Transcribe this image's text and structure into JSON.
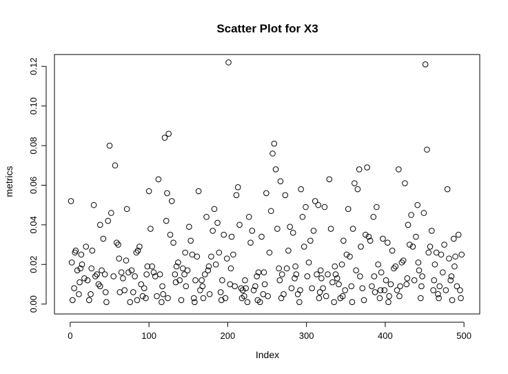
{
  "chart_data": {
    "type": "scatter",
    "title": "Scatter Plot for X3",
    "xlabel": "Index",
    "ylabel": "metrics",
    "xlim": [
      -20,
      520
    ],
    "ylim": [
      -0.005,
      0.126
    ],
    "x_ticks": [
      0,
      100,
      200,
      300,
      400,
      500
    ],
    "x_tick_labels": [
      "0",
      "100",
      "200",
      "300",
      "400",
      "500"
    ],
    "y_ticks": [
      0.0,
      0.02,
      0.04,
      0.06,
      0.08,
      0.1,
      0.12
    ],
    "y_tick_labels": [
      "0.00",
      "0.02",
      "0.04",
      "0.06",
      "0.08",
      "0.10",
      "0.12"
    ],
    "marker": "open-circle",
    "grid": false,
    "legend": "none",
    "point_color": "#000000",
    "points": [
      [
        1,
        0.052
      ],
      [
        2,
        0.021
      ],
      [
        3,
        0.002
      ],
      [
        5,
        0.008
      ],
      [
        6,
        0.026
      ],
      [
        7,
        0.027
      ],
      [
        9,
        0.017
      ],
      [
        11,
        0.005
      ],
      [
        13,
        0.018
      ],
      [
        14,
        0.025
      ],
      [
        15,
        0.02
      ],
      [
        18,
        0.013
      ],
      [
        20,
        0.029
      ],
      [
        22,
        0.012
      ],
      [
        24,
        0.002
      ],
      [
        26,
        0.005
      ],
      [
        28,
        0.027
      ],
      [
        30,
        0.05
      ],
      [
        32,
        0.014
      ],
      [
        34,
        0.015
      ],
      [
        36,
        0.01
      ],
      [
        38,
        0.04
      ],
      [
        40,
        0.017
      ],
      [
        42,
        0.033
      ],
      [
        44,
        0.015
      ],
      [
        46,
        0.001
      ],
      [
        48,
        0.042
      ],
      [
        50,
        0.08
      ],
      [
        52,
        0.046
      ],
      [
        55,
        0.014
      ],
      [
        57,
        0.07
      ],
      [
        59,
        0.031
      ],
      [
        61,
        0.03
      ],
      [
        63,
        0.006
      ],
      [
        65,
        0.016
      ],
      [
        67,
        0.013
      ],
      [
        69,
        0.007
      ],
      [
        72,
        0.048
      ],
      [
        74,
        0.016
      ],
      [
        76,
        0.001
      ],
      [
        78,
        0.017
      ],
      [
        80,
        0.006
      ],
      [
        82,
        0.014
      ],
      [
        84,
        0.026
      ],
      [
        86,
        0.027
      ],
      [
        88,
        0.029
      ],
      [
        90,
        0.01
      ],
      [
        92,
        0.004
      ],
      [
        94,
        0.008
      ],
      [
        96,
        0.003
      ],
      [
        98,
        0.019
      ],
      [
        100,
        0.057
      ],
      [
        102,
        0.038
      ],
      [
        104,
        0.019
      ],
      [
        106,
        0.016
      ],
      [
        108,
        0.014
      ],
      [
        110,
        0.004
      ],
      [
        112,
        0.063
      ],
      [
        114,
        0.015
      ],
      [
        116,
        0.001
      ],
      [
        118,
        0.005
      ],
      [
        120,
        0.084
      ],
      [
        122,
        0.042
      ],
      [
        123,
        0.056
      ],
      [
        124,
        0.003
      ],
      [
        125,
        0.086
      ],
      [
        127,
        0.035
      ],
      [
        129,
        0.052
      ],
      [
        131,
        0.031
      ],
      [
        133,
        0.015
      ],
      [
        135,
        0.019
      ],
      [
        137,
        0.021
      ],
      [
        139,
        0.012
      ],
      [
        141,
        0.002
      ],
      [
        143,
        0.018
      ],
      [
        145,
        0.015
      ],
      [
        147,
        0.009
      ],
      [
        149,
        0.017
      ],
      [
        151,
        0.039
      ],
      [
        153,
        0.032
      ],
      [
        155,
        0.025
      ],
      [
        157,
        0.003
      ],
      [
        159,
        0.012
      ],
      [
        161,
        0.024
      ],
      [
        163,
        0.057
      ],
      [
        165,
        0.007
      ],
      [
        167,
        0.012
      ],
      [
        169,
        0.003
      ],
      [
        171,
        0.015
      ],
      [
        173,
        0.044
      ],
      [
        175,
        0.017
      ],
      [
        177,
        0.005
      ],
      [
        179,
        0.024
      ],
      [
        181,
        0.037
      ],
      [
        183,
        0.048
      ],
      [
        185,
        0.02
      ],
      [
        187,
        0.041
      ],
      [
        189,
        0.026
      ],
      [
        191,
        0.006
      ],
      [
        193,
        0.012
      ],
      [
        195,
        0.035
      ],
      [
        197,
        0.003
      ],
      [
        199,
        0.023
      ],
      [
        201,
        0.122
      ],
      [
        203,
        0.01
      ],
      [
        205,
        0.034
      ],
      [
        207,
        0.025
      ],
      [
        209,
        0.009
      ],
      [
        211,
        0.055
      ],
      [
        213,
        0.059
      ],
      [
        215,
        0.04
      ],
      [
        217,
        0.008
      ],
      [
        219,
        0.007
      ],
      [
        221,
        0.004
      ],
      [
        223,
        0.008
      ],
      [
        225,
        0.001
      ],
      [
        227,
        0.044
      ],
      [
        229,
        0.031
      ],
      [
        231,
        0.037
      ],
      [
        233,
        0.007
      ],
      [
        235,
        0.009
      ],
      [
        237,
        0.014
      ],
      [
        239,
        0.016
      ],
      [
        241,
        0.001
      ],
      [
        243,
        0.034
      ],
      [
        245,
        0.005
      ],
      [
        247,
        0.01
      ],
      [
        249,
        0.056
      ],
      [
        251,
        0.004
      ],
      [
        253,
        0.026
      ],
      [
        255,
        0.047
      ],
      [
        257,
        0.076
      ],
      [
        259,
        0.081
      ],
      [
        261,
        0.068
      ],
      [
        263,
        0.038
      ],
      [
        265,
        0.018
      ],
      [
        267,
        0.062
      ],
      [
        269,
        0.015
      ],
      [
        271,
        0.005
      ],
      [
        273,
        0.055
      ],
      [
        275,
        0.018
      ],
      [
        277,
        0.027
      ],
      [
        279,
        0.039
      ],
      [
        281,
        0.008
      ],
      [
        283,
        0.036
      ],
      [
        285,
        0.013
      ],
      [
        287,
        0.015
      ],
      [
        289,
        0.005
      ],
      [
        291,
        0.001
      ],
      [
        293,
        0.058
      ],
      [
        295,
        0.044
      ],
      [
        297,
        0.029
      ],
      [
        299,
        0.049
      ],
      [
        301,
        0.014
      ],
      [
        303,
        0.021
      ],
      [
        305,
        0.032
      ],
      [
        307,
        0.008
      ],
      [
        309,
        0.037
      ],
      [
        311,
        0.052
      ],
      [
        313,
        0.015
      ],
      [
        315,
        0.05
      ],
      [
        317,
        0.006
      ],
      [
        319,
        0.013
      ],
      [
        321,
        0.008
      ],
      [
        323,
        0.049
      ],
      [
        325,
        0.004
      ],
      [
        327,
        0.015
      ],
      [
        329,
        0.063
      ],
      [
        331,
        0.038
      ],
      [
        333,
        0.011
      ],
      [
        335,
        0.001
      ],
      [
        337,
        0.015
      ],
      [
        339,
        0.013
      ],
      [
        341,
        0.01
      ],
      [
        343,
        0.003
      ],
      [
        345,
        0.02
      ],
      [
        347,
        0.032
      ],
      [
        349,
        0.007
      ],
      [
        351,
        0.025
      ],
      [
        353,
        0.048
      ],
      [
        355,
        0.024
      ],
      [
        357,
        0.009
      ],
      [
        359,
        0.038
      ],
      [
        361,
        0.061
      ],
      [
        363,
        0.017
      ],
      [
        365,
        0.058
      ],
      [
        367,
        0.068
      ],
      [
        369,
        0.029
      ],
      [
        371,
        0.008
      ],
      [
        373,
        0.002
      ],
      [
        375,
        0.035
      ],
      [
        377,
        0.069
      ],
      [
        379,
        0.034
      ],
      [
        381,
        0.032
      ],
      [
        383,
        0.009
      ],
      [
        385,
        0.044
      ],
      [
        387,
        0.006
      ],
      [
        389,
        0.049
      ],
      [
        391,
        0.02
      ],
      [
        393,
        0.003
      ],
      [
        395,
        0.016
      ],
      [
        397,
        0.033
      ],
      [
        399,
        0.007
      ],
      [
        401,
        0.012
      ],
      [
        403,
        0.031
      ],
      [
        405,
        0.004
      ],
      [
        407,
        0.01
      ],
      [
        409,
        0.027
      ],
      [
        411,
        0.018
      ],
      [
        413,
        0.019
      ],
      [
        415,
        0.007
      ],
      [
        417,
        0.068
      ],
      [
        419,
        0.009
      ],
      [
        421,
        0.021
      ],
      [
        423,
        0.022
      ],
      [
        425,
        0.061
      ],
      [
        427,
        0.01
      ],
      [
        429,
        0.04
      ],
      [
        431,
        0.03
      ],
      [
        433,
        0.045
      ],
      [
        435,
        0.029
      ],
      [
        437,
        0.012
      ],
      [
        439,
        0.034
      ],
      [
        441,
        0.05
      ],
      [
        443,
        0.017
      ],
      [
        445,
        0.003
      ],
      [
        447,
        0.014
      ],
      [
        449,
        0.046
      ],
      [
        451,
        0.121
      ],
      [
        453,
        0.078
      ],
      [
        455,
        0.026
      ],
      [
        457,
        0.029
      ],
      [
        459,
        0.037
      ],
      [
        461,
        0.007
      ],
      [
        463,
        0.02
      ],
      [
        465,
        0.026
      ],
      [
        467,
        0.005
      ],
      [
        469,
        0.009
      ],
      [
        471,
        0.025
      ],
      [
        473,
        0.016
      ],
      [
        475,
        0.03
      ],
      [
        477,
        0.007
      ],
      [
        479,
        0.058
      ],
      [
        481,
        0.023
      ],
      [
        483,
        0.012
      ],
      [
        485,
        0.002
      ],
      [
        487,
        0.033
      ],
      [
        489,
        0.024
      ],
      [
        491,
        0.009
      ],
      [
        493,
        0.035
      ],
      [
        495,
        0.007
      ],
      [
        497,
        0.025
      ],
      [
        38,
        0.009
      ],
      [
        62,
        0.023
      ],
      [
        85,
        0.002
      ],
      [
        134,
        0.011
      ],
      [
        158,
        0.001
      ],
      [
        176,
        0.019
      ],
      [
        204,
        0.018
      ],
      [
        222,
        0.012
      ],
      [
        238,
        0.002
      ],
      [
        268,
        0.003
      ],
      [
        286,
        0.019
      ],
      [
        316,
        0.003
      ],
      [
        336,
        0.019
      ],
      [
        358,
        0.001
      ],
      [
        386,
        0.014
      ],
      [
        404,
        0.001
      ],
      [
        428,
        0.013
      ],
      [
        446,
        0.009
      ],
      [
        468,
        0.003
      ],
      [
        488,
        0.019
      ],
      [
        12,
        0.011
      ],
      [
        27,
        0.018
      ],
      [
        45,
        0.006
      ],
      [
        71,
        0.022
      ],
      [
        97,
        0.015
      ],
      [
        117,
        0.009
      ],
      [
        146,
        0.026
      ],
      [
        168,
        0.009
      ],
      [
        192,
        0.002
      ],
      [
        218,
        0.003
      ],
      [
        246,
        0.016
      ],
      [
        266,
        0.012
      ],
      [
        292,
        0.007
      ],
      [
        318,
        0.017
      ],
      [
        346,
        0.004
      ],
      [
        368,
        0.014
      ],
      [
        394,
        0.007
      ],
      [
        418,
        0.004
      ],
      [
        442,
        0.021
      ],
      [
        462,
        0.012
      ],
      [
        484,
        0.014
      ],
      [
        496,
        0.003
      ]
    ]
  }
}
